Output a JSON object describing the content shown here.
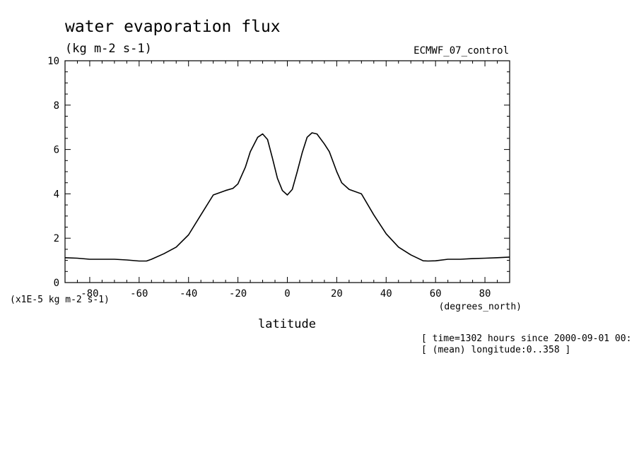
{
  "chart_data": {
    "type": "line",
    "title": "water evaporation flux",
    "units": "(kg m-2 s-1)",
    "dataset": "ECMWF_07_control",
    "xlabel": "latitude",
    "xunits": "(degrees_north)",
    "yscale_label": "(x1E-5 kg m-2 s-1)",
    "xlim": [
      -90,
      90
    ],
    "ylim": [
      0,
      10
    ],
    "xticks": [
      -80,
      -60,
      -40,
      -20,
      0,
      20,
      40,
      60,
      80
    ],
    "yticks": [
      0,
      2,
      4,
      6,
      8,
      10
    ],
    "grid": false,
    "legend": "none",
    "line_color": "#000000",
    "x": [
      -90,
      -85,
      -80,
      -75,
      -70,
      -65,
      -60,
      -57,
      -55,
      -50,
      -45,
      -40,
      -35,
      -30,
      -25,
      -22,
      -20,
      -17,
      -15,
      -12,
      -10,
      -8,
      -6,
      -4,
      -2,
      0,
      2,
      4,
      6,
      8,
      10,
      12,
      15,
      17,
      20,
      22,
      25,
      30,
      35,
      40,
      45,
      50,
      55,
      57,
      60,
      65,
      70,
      75,
      80,
      85,
      90
    ],
    "y": [
      1.12,
      1.1,
      1.05,
      1.05,
      1.05,
      1.02,
      0.97,
      0.97,
      1.05,
      1.3,
      1.6,
      2.15,
      3.05,
      3.95,
      4.15,
      4.25,
      4.45,
      5.2,
      5.9,
      6.55,
      6.7,
      6.45,
      5.6,
      4.7,
      4.15,
      3.95,
      4.2,
      5.0,
      5.85,
      6.55,
      6.75,
      6.7,
      6.25,
      5.9,
      5.0,
      4.5,
      4.2,
      4.0,
      3.05,
      2.2,
      1.6,
      1.25,
      0.98,
      0.97,
      0.98,
      1.05,
      1.05,
      1.08,
      1.1,
      1.12,
      1.15
    ]
  },
  "footer": {
    "line1": "[ time=1302 hours since 2000-09-01 00:",
    "line2": "[ (mean) longitude:0..358 ]"
  }
}
